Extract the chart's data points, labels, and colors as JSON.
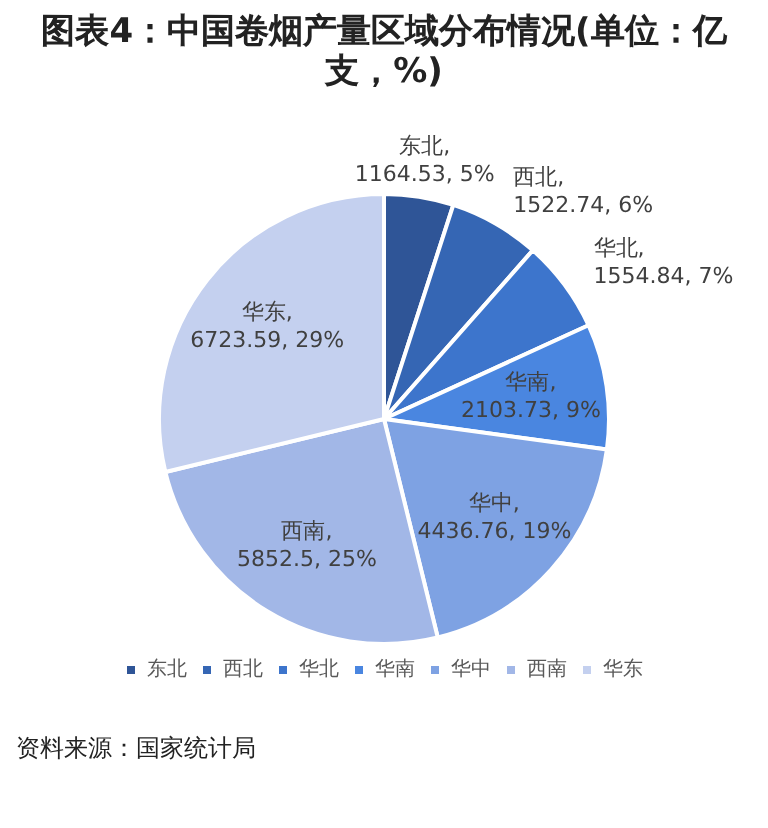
{
  "chart_data": {
    "type": "pie",
    "title": "图表4：中国卷烟产量区域分布情况(单位：亿支，%)",
    "categories": [
      "东北",
      "西北",
      "华北",
      "华南",
      "华中",
      "西南",
      "华东"
    ],
    "values": [
      1164.53,
      1522.74,
      1554.84,
      2103.73,
      4436.76,
      5852.5,
      6723.59
    ],
    "colors": [
      "#2f5597",
      "#3566b4",
      "#3d75cc",
      "#4a86e0",
      "#7ea2e3",
      "#a2b7e7",
      "#c4d0ef"
    ],
    "value_labels": [
      "东北, 1164.53, 5%",
      "西北, 1522.74, 6%",
      "华北, 1554.84, 7%",
      "华南, 2103.73, 9%",
      "华中, 4436.76, 19%",
      "西南, 5852.5, 25%",
      "华东, 6723.59, 29%"
    ],
    "legend": "bottom",
    "annotations": [
      "资料来源：国家统计局"
    ]
  }
}
